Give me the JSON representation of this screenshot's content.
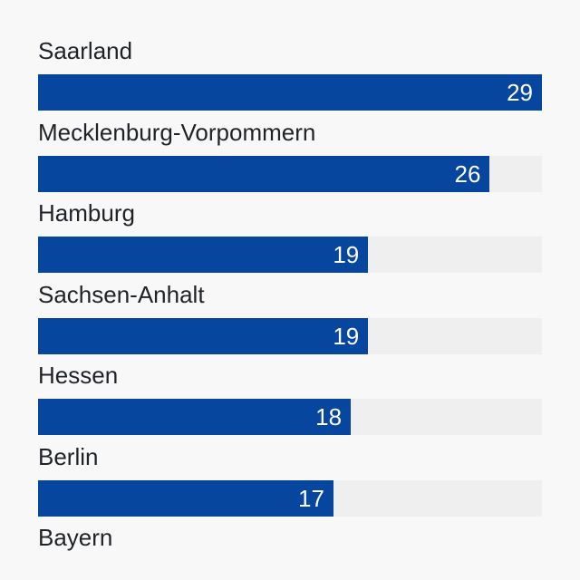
{
  "chart_data": {
    "type": "bar",
    "orientation": "horizontal",
    "categories": [
      "Saarland",
      "Mecklenburg-Vorpommern",
      "Hamburg",
      "Sachsen-Anhalt",
      "Hessen",
      "Berlin",
      "Bayern"
    ],
    "values": [
      29,
      26,
      19,
      19,
      18,
      17,
      null
    ],
    "xlim": [
      0,
      29
    ],
    "colors": {
      "bar": "#06469f",
      "track": "#efefef",
      "label_text": "#1f2328",
      "value_text": "#ffffff",
      "background": "#f8f8f9"
    }
  }
}
